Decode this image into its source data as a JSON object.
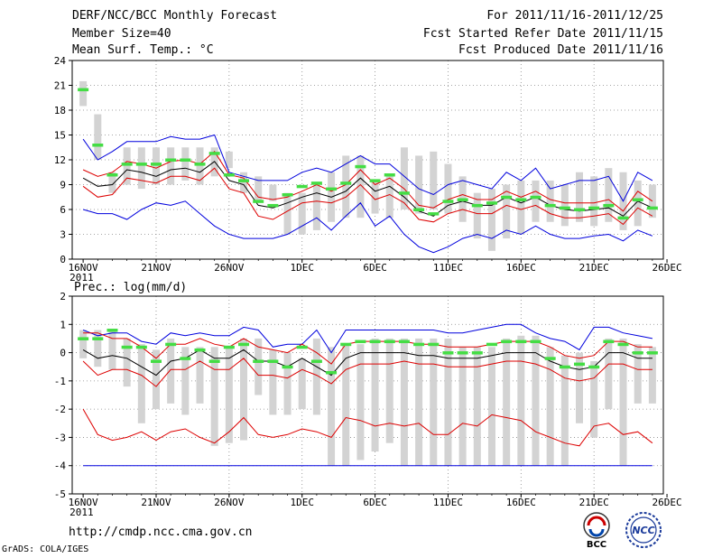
{
  "header": {
    "line1_left": "DERF/NCC/BCC Monthly Forecast",
    "line2_left": "Member Size=40",
    "line3_left": "Mean Surf. Temp.: °C",
    "line1_right": "For 2011/11/16-2011/12/25",
    "line2_right": "Fcst Started Refer Date 2011/11/15",
    "line3_right": "Fcst Produced Date 2011/11/16"
  },
  "footer": {
    "url": "http://cmdp.ncc.cma.gov.cn",
    "credit": "GrADS: COLA/IGES",
    "logo1": "BCC",
    "logo2": "NCC"
  },
  "colors": {
    "box": "#d3d3d3",
    "mean": "#44dd44",
    "median": "#000000",
    "inner": "#dd0000",
    "outer": "#0000dd",
    "grid": "#888888"
  },
  "chart_data": [
    {
      "type": "box-line",
      "title": "Mean Surf. Temp.: °C",
      "ylim": [
        0,
        24
      ],
      "yticks": [
        0,
        3,
        6,
        9,
        12,
        15,
        18,
        21,
        24
      ],
      "xlabels": [
        "16NOV",
        "21NOV",
        "26NOV",
        "1DEC",
        "6DEC",
        "11DEC",
        "16DEC",
        "21DEC",
        "26DEC"
      ],
      "year_label": "2011",
      "days": 40,
      "box_low": [
        18.5,
        12,
        8,
        9,
        8.5,
        9,
        9,
        9.5,
        9,
        10,
        11,
        8,
        7,
        7,
        3,
        3,
        3.5,
        4.5,
        5,
        5,
        5.5,
        5,
        6,
        5.5,
        6,
        5.5,
        4.5,
        2.5,
        1,
        2.5,
        3,
        4.5,
        4.5,
        4,
        4.5,
        4,
        4.5,
        3.5,
        4,
        5
      ],
      "box_high": [
        21.5,
        17.5,
        10.5,
        13.5,
        13.5,
        13.5,
        13.5,
        13.5,
        13.5,
        13.5,
        13,
        10.5,
        10,
        9,
        8,
        8,
        9,
        10.5,
        12.5,
        12.5,
        9.5,
        10,
        13.5,
        12.5,
        13,
        11.5,
        10,
        8,
        8.5,
        9,
        9.5,
        9.5,
        9.5,
        9,
        10.5,
        10,
        11,
        10.5,
        9.5,
        9
      ],
      "mean": [
        20.5,
        13.8,
        10.2,
        11.5,
        11.5,
        11.5,
        12,
        12,
        11.5,
        12.8,
        10.2,
        9.5,
        7,
        6.5,
        7.8,
        8.8,
        9.2,
        8.5,
        9.2,
        11.2,
        9.5,
        10.2,
        8,
        6,
        5.5,
        7,
        7.2,
        6.5,
        6.8,
        7.5,
        7.2,
        7.5,
        6.5,
        6.2,
        6,
        6.2,
        6.5,
        5,
        7.2,
        6.2
      ],
      "median": [
        9.8,
        8.8,
        9,
        10.8,
        10.5,
        10,
        10.8,
        11,
        10.5,
        11.8,
        9.5,
        9,
        6.5,
        6.2,
        6.8,
        7.5,
        8,
        7.5,
        8.2,
        9.8,
        8.2,
        8.8,
        7.5,
        5.8,
        5.2,
        6.5,
        7,
        6.5,
        6.5,
        7.5,
        6.8,
        7.5,
        6.5,
        6,
        5.8,
        6,
        6.2,
        5.2,
        7,
        6.2
      ],
      "inner_low": [
        8.8,
        7.5,
        7.8,
        9.8,
        9.5,
        9.2,
        10,
        10,
        9.5,
        11,
        8.5,
        8,
        5.2,
        4.8,
        5.8,
        6.8,
        7,
        6.8,
        7.5,
        9,
        7.2,
        7.8,
        6.8,
        4.8,
        4.5,
        5.5,
        6,
        5.5,
        5.5,
        6.5,
        6,
        6.5,
        5.5,
        5,
        5,
        5.2,
        5.5,
        4.2,
        6.2,
        5.2
      ],
      "inner_high": [
        10.8,
        10,
        10.5,
        11.8,
        11.5,
        11,
        11.8,
        12,
        11.5,
        13,
        10.2,
        9.8,
        7.5,
        7.2,
        7.5,
        8.2,
        9,
        8.2,
        9,
        10.8,
        9,
        9.8,
        8.5,
        6.5,
        6.2,
        7.2,
        7.8,
        7.2,
        7.2,
        8.2,
        7.5,
        8.2,
        7.2,
        6.8,
        6.8,
        6.8,
        7.2,
        5.8,
        8.2,
        7
      ],
      "outer_low": [
        6,
        5.5,
        5.5,
        4.8,
        6,
        6.8,
        6.5,
        7,
        5.5,
        4,
        3,
        2.5,
        2.5,
        2.5,
        3,
        4,
        5,
        3.5,
        5.2,
        6.8,
        4,
        5.2,
        3,
        1.5,
        0.8,
        1.5,
        2.5,
        3,
        2.5,
        3.5,
        3,
        4,
        3,
        2.5,
        2.5,
        2.8,
        3,
        2.2,
        3.5,
        2.8
      ],
      "outer_high": [
        14.5,
        12,
        13,
        14.2,
        14.2,
        14.2,
        14.8,
        14.5,
        14.5,
        15,
        10.5,
        10,
        9.5,
        9.5,
        9.5,
        10.5,
        11,
        10.5,
        11.5,
        12.5,
        11.5,
        11.5,
        10,
        8.5,
        7.8,
        9,
        9.5,
        9,
        8.5,
        10.5,
        9.5,
        11,
        8.5,
        9,
        9.5,
        9.5,
        10,
        7,
        10.5,
        9.5
      ]
    },
    {
      "type": "box-line",
      "title": "Prec.: log(mm/d)",
      "ylim": [
        -5,
        2
      ],
      "yticks": [
        -5,
        -4,
        -3,
        -2,
        -1,
        0,
        1,
        2
      ],
      "xlabels": [
        "16NOV",
        "21NOV",
        "26NOV",
        "1DEC",
        "6DEC",
        "11DEC",
        "16DEC",
        "21DEC",
        "26DEC"
      ],
      "year_label": "2011",
      "days": 40,
      "box_low": [
        -0.2,
        -0.5,
        -0.6,
        -1.2,
        -2.5,
        -2,
        -1.8,
        -2.2,
        -1.8,
        -3.3,
        -3.2,
        -3.1,
        -1.5,
        -2.2,
        -2.2,
        -2,
        -2.2,
        -4,
        -4,
        -3.8,
        -3.5,
        -3.2,
        -4,
        -4,
        -4,
        -4,
        -4,
        -4,
        -4,
        -4,
        -4,
        -4,
        -4,
        -4,
        -2.5,
        -3,
        -2,
        -4,
        -1.8,
        -1.8
      ],
      "box_high": [
        0.8,
        0.8,
        0.8,
        0.5,
        0.3,
        0.1,
        0.5,
        0.2,
        0.2,
        0.2,
        0.2,
        0.5,
        0.5,
        0.1,
        0,
        -0.2,
        0.5,
        0.2,
        0.3,
        0.3,
        0.5,
        0.5,
        0.5,
        0.5,
        0.5,
        0.5,
        0.2,
        0.2,
        0.2,
        0.5,
        0.6,
        0.6,
        0.2,
        -0.1,
        0,
        -0.3,
        0.5,
        0.5,
        0.3,
        0.2
      ],
      "mean": [
        0.5,
        0.5,
        0.8,
        0.2,
        0.2,
        -0.3,
        0.3,
        -0.2,
        0.1,
        -0.3,
        0.2,
        0.3,
        -0.3,
        -0.3,
        -0.5,
        0.2,
        -0.3,
        -0.7,
        0.3,
        0.4,
        0.4,
        0.4,
        0.4,
        0.3,
        0.3,
        0,
        0,
        0,
        0.3,
        0.4,
        0.4,
        0.4,
        -0.2,
        -0.5,
        -0.4,
        -0.5,
        0.4,
        0.3,
        0,
        0
      ],
      "median": [
        0.1,
        -0.2,
        -0.1,
        -0.2,
        -0.5,
        -0.8,
        -0.3,
        -0.2,
        0.1,
        -0.2,
        -0.2,
        0.1,
        -0.3,
        -0.3,
        -0.5,
        -0.2,
        -0.5,
        -0.8,
        -0.2,
        0,
        0,
        0,
        0,
        -0.1,
        -0.1,
        -0.2,
        -0.2,
        -0.2,
        -0.1,
        0,
        0,
        0,
        -0.3,
        -0.5,
        -0.6,
        -0.5,
        0,
        0,
        -0.2,
        -0.2
      ],
      "inner_low": [
        -0.3,
        -0.8,
        -0.6,
        -0.6,
        -0.8,
        -1.2,
        -0.6,
        -0.6,
        -0.3,
        -0.6,
        -0.6,
        -0.2,
        -0.8,
        -0.8,
        -0.9,
        -0.6,
        -0.8,
        -1.1,
        -0.6,
        -0.4,
        -0.4,
        -0.4,
        -0.3,
        -0.4,
        -0.4,
        -0.5,
        -0.5,
        -0.5,
        -0.4,
        -0.3,
        -0.3,
        -0.4,
        -0.6,
        -0.9,
        -1,
        -0.9,
        -0.4,
        -0.4,
        -0.6,
        -0.6
      ],
      "inner_high": [
        0.7,
        0.7,
        0.5,
        0.5,
        0.2,
        -0.2,
        0.3,
        0.3,
        0.5,
        0.3,
        0.2,
        0.5,
        0.2,
        0.1,
        0,
        0.3,
        0,
        -0.4,
        0.3,
        0.4,
        0.4,
        0.4,
        0.4,
        0.3,
        0.3,
        0.2,
        0.2,
        0.2,
        0.3,
        0.4,
        0.4,
        0.4,
        0.2,
        -0.1,
        -0.2,
        -0.1,
        0.4,
        0.4,
        0.2,
        0.2
      ],
      "outer_low": [
        -2,
        -2.9,
        -3.1,
        -3,
        -2.8,
        -3.1,
        -2.8,
        -2.7,
        -3,
        -3.2,
        -2.8,
        -2.3,
        -2.9,
        -3,
        -2.9,
        -2.7,
        -2.8,
        -3,
        -2.3,
        -2.4,
        -2.6,
        -2.5,
        -2.6,
        -2.5,
        -2.9,
        -2.9,
        -2.5,
        -2.6,
        -2.2,
        -2.3,
        -2.4,
        -2.8,
        -3,
        -3.2,
        -3.3,
        -2.6,
        -2.5,
        -2.9,
        -2.8,
        -3.2
      ],
      "outer_high": [
        0.8,
        0.6,
        0.7,
        0.7,
        0.4,
        0.3,
        0.7,
        0.6,
        0.7,
        0.6,
        0.6,
        0.9,
        0.8,
        0.2,
        0.3,
        0.3,
        0.8,
        0,
        0.8,
        0.8,
        0.8,
        0.8,
        0.8,
        0.8,
        0.8,
        0.7,
        0.7,
        0.8,
        0.9,
        1,
        1,
        0.7,
        0.5,
        0.4,
        0.1,
        0.9,
        0.9,
        0.7,
        0.6,
        0.5
      ],
      "floor": -4
    }
  ]
}
